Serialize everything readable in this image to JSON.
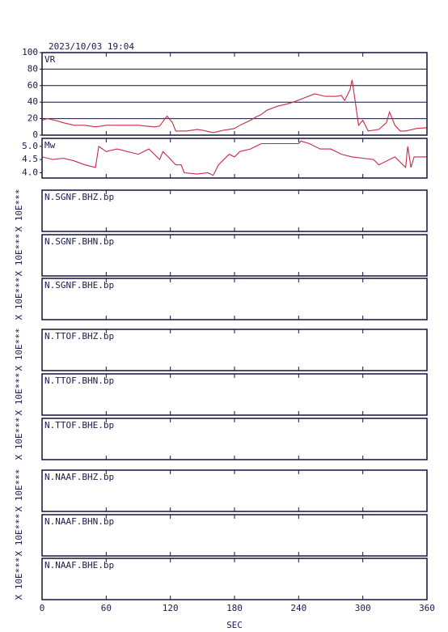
{
  "timestamp": "2023/10/03 19:04",
  "x_axis": {
    "label": "SEC",
    "xlim": [
      0,
      360
    ],
    "xticks": [
      0,
      60,
      120,
      180,
      240,
      300,
      360
    ]
  },
  "chart_data": [
    {
      "type": "line",
      "label": "VR",
      "color": "#c8284b",
      "grid": true,
      "ylim": [
        0,
        100
      ],
      "yticks": [
        0,
        20,
        40,
        60,
        80,
        100
      ],
      "x": [
        0,
        5,
        12,
        20,
        30,
        40,
        50,
        60,
        75,
        90,
        105,
        110,
        115,
        117,
        120,
        122,
        125,
        135,
        145,
        150,
        160,
        170,
        180,
        185,
        190,
        195,
        200,
        205,
        210,
        220,
        230,
        235,
        245,
        255,
        265,
        275,
        280,
        283,
        288,
        290,
        293,
        296,
        300,
        305,
        315,
        322,
        325,
        330,
        335,
        340,
        350,
        360
      ],
      "values": [
        18,
        20,
        18,
        15,
        12,
        12,
        10,
        12,
        12,
        12,
        10,
        11,
        20,
        23,
        18,
        15,
        5,
        5,
        7,
        6,
        3,
        6,
        8,
        12,
        15,
        18,
        22,
        25,
        30,
        35,
        38,
        40,
        45,
        50,
        47,
        47,
        48,
        42,
        55,
        67,
        40,
        12,
        18,
        5,
        7,
        15,
        28,
        12,
        5,
        5,
        8,
        9
      ]
    },
    {
      "type": "line",
      "label": "Mw",
      "color": "#c8284b",
      "grid": false,
      "ylim": [
        3.8,
        5.3
      ],
      "yticks": [
        {
          "value": 4.0,
          "label": "4.0"
        },
        {
          "value": 4.5,
          "label": "4.5"
        },
        {
          "value": 5.0,
          "label": "5.0"
        }
      ],
      "x": [
        0,
        10,
        20,
        30,
        40,
        50,
        53,
        60,
        70,
        90,
        100,
        110,
        113,
        118,
        125,
        130,
        133,
        145,
        155,
        160,
        165,
        175,
        180,
        185,
        195,
        200,
        205,
        240,
        242,
        250,
        260,
        270,
        280,
        290,
        310,
        315,
        330,
        340,
        342,
        345,
        348,
        360
      ],
      "values": [
        4.6,
        4.5,
        4.55,
        4.45,
        4.3,
        4.2,
        5.0,
        4.8,
        4.9,
        4.7,
        4.9,
        4.5,
        4.8,
        4.6,
        4.3,
        4.3,
        4.0,
        3.95,
        4.0,
        3.9,
        4.3,
        4.7,
        4.6,
        4.8,
        4.9,
        5.0,
        5.1,
        5.1,
        5.2,
        5.1,
        4.9,
        4.9,
        4.7,
        4.6,
        4.5,
        4.3,
        4.6,
        4.2,
        5.0,
        4.2,
        4.6,
        4.6
      ]
    }
  ],
  "traces": [
    {
      "title": "N.SGNF.BHZ.bp",
      "ylabel": "X 10E***"
    },
    {
      "title": "N.SGNF.BHN.bp",
      "ylabel": "X 10E***"
    },
    {
      "title": "N.SGNF.BHE.bp",
      "ylabel": "X 10E***"
    },
    {
      "title": "N.TTOF.BHZ.bp",
      "ylabel": "X 10E***"
    },
    {
      "title": "N.TTOF.BHN.bp",
      "ylabel": "X 10E***"
    },
    {
      "title": "N.TTOF.BHE.bp",
      "ylabel": "X 10E***"
    },
    {
      "title": "N.NAAF.BHZ.bp",
      "ylabel": "X 10E***"
    },
    {
      "title": "N.NAAF.BHN.bp",
      "ylabel": "X 10E***"
    },
    {
      "title": "N.NAAF.BHE.bp",
      "ylabel": "X 10E***"
    }
  ]
}
